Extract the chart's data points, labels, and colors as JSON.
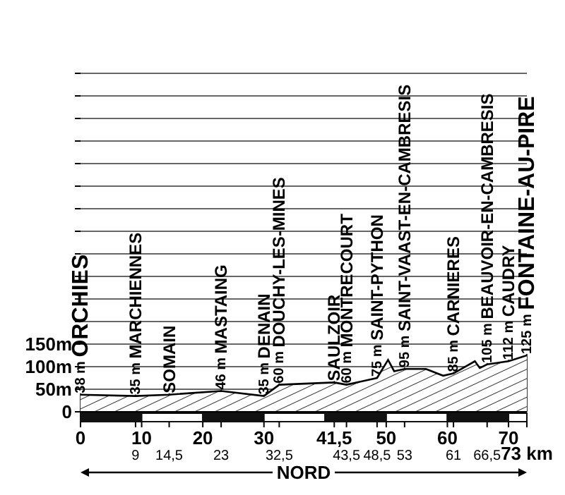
{
  "chart_data": {
    "type": "area",
    "color": "#000000",
    "x": [
      0,
      9,
      14.5,
      23,
      30,
      32.5,
      41.5,
      43.5,
      48.5,
      50.3,
      51.3,
      53,
      56.5,
      59.3,
      61,
      64.5,
      65.3,
      66.5,
      70,
      73
    ],
    "values": [
      38,
      35,
      38,
      46,
      35,
      60,
      65,
      60,
      75,
      115,
      90,
      95,
      95,
      80,
      85,
      112,
      97,
      105,
      112,
      125
    ],
    "value_labels": [
      "38 m",
      "35 m",
      null,
      "46 m",
      "35 m",
      "60 m",
      null,
      "60 m",
      "75 m",
      null,
      null,
      "95 m",
      null,
      null,
      "85 m",
      null,
      null,
      "105 m",
      "112 m",
      "125 m"
    ],
    "annotations": [
      {
        "text": "ORCHIES",
        "x": 0,
        "y": 38
      },
      {
        "text": "MARCHIENNES",
        "x": 9,
        "y": 35
      },
      {
        "text": "SOMAIN",
        "x": 14.5,
        "y": 38
      },
      {
        "text": "MASTAING",
        "x": 23,
        "y": 46
      },
      {
        "text": "DENAIN",
        "x": 30,
        "y": 35
      },
      {
        "text": "DOUCHY-LES-MINES",
        "x": 32.5,
        "y": 60
      },
      {
        "text": "SAULZOIR",
        "x": 41.5,
        "y": 65
      },
      {
        "text": "MONTRECOURT",
        "x": 43.5,
        "y": 60
      },
      {
        "text": "SAINT-PYTHON",
        "x": 48.5,
        "y": 75
      },
      {
        "text": "SAINT-VAAST-EN-CAMBRESIS",
        "x": 53,
        "y": 95
      },
      {
        "text": "CARNIERES",
        "x": 61,
        "y": 85
      },
      {
        "text": "BEAUVOIR-EN-CAMBRESIS",
        "x": 66.5,
        "y": 105
      },
      {
        "text": "CAUDRY",
        "x": 70,
        "y": 112
      },
      {
        "text": "FONTAINE-AU-PIRE",
        "x": 73,
        "y": 125
      },
      "NORD"
    ],
    "xlim": [
      0,
      73
    ],
    "xticks": [
      0,
      10,
      20,
      30,
      {
        "value": 41.5,
        "label": "41,5"
      },
      50,
      60,
      70
    ],
    "x2lim": [
      0,
      73
    ],
    "x2ticks": [
      9,
      {
        "value": 14.5,
        "label": "14,5"
      },
      23,
      {
        "value": 32.5,
        "label": "32,5"
      },
      {
        "value": 43.5,
        "label": "43,5"
      },
      {
        "value": 48.5,
        "label": "48,5"
      },
      53,
      61,
      {
        "value": 66.5,
        "label": "66,5"
      },
      {
        "value": 73,
        "label": "73 km"
      }
    ],
    "ylim": [
      0,
      750
    ],
    "yticks": [
      {
        "value": 0,
        "label": "0"
      },
      {
        "value": 50,
        "label": "50m"
      },
      {
        "value": 100,
        "label": "100m"
      },
      {
        "value": 150,
        "label": "150m"
      },
      {
        "value": 200,
        "label": null
      },
      {
        "value": 250,
        "label": null
      },
      {
        "value": 300,
        "label": null
      },
      {
        "value": 350,
        "label": null
      },
      {
        "value": 400,
        "label": null
      },
      {
        "value": 450,
        "label": null
      },
      {
        "value": 500,
        "label": null
      },
      {
        "value": 550,
        "label": null
      },
      {
        "value": 600,
        "label": null
      },
      {
        "value": 650,
        "label": null
      },
      {
        "value": 700,
        "label": null
      },
      {
        "value": 750,
        "label": null
      }
    ],
    "grid": "y"
  }
}
